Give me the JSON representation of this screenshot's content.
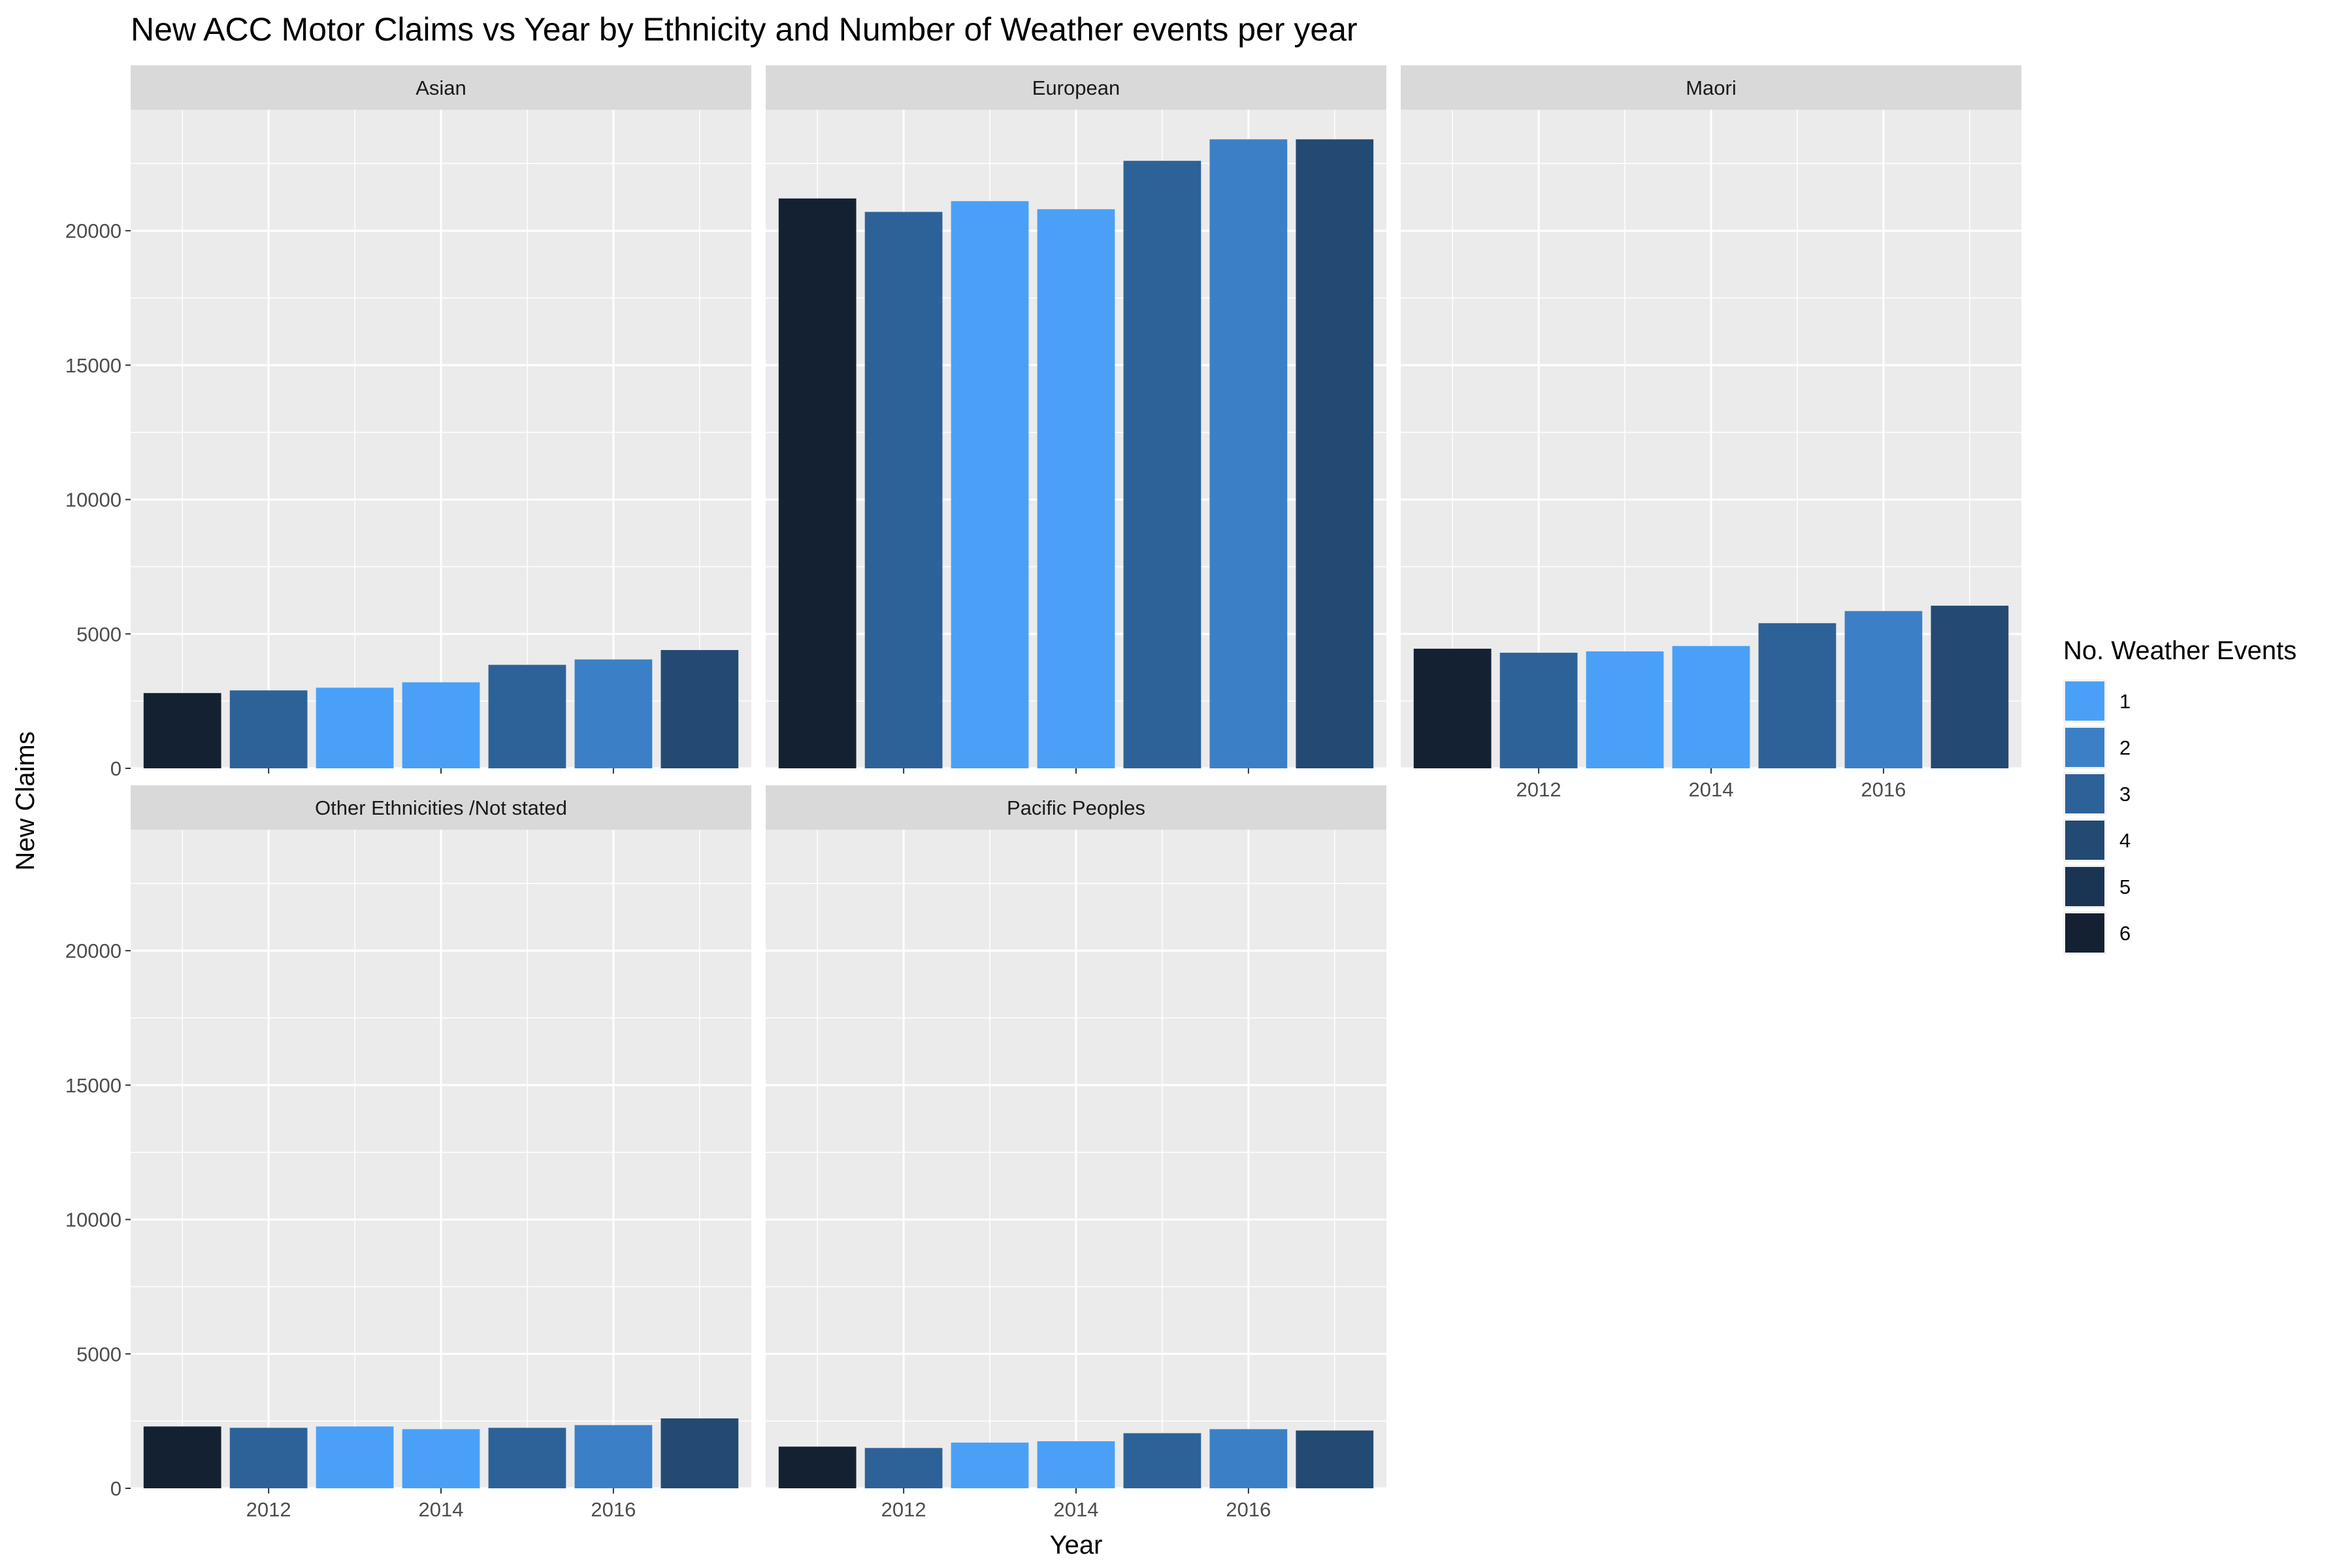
{
  "chart_data": {
    "type": "bar",
    "title": "New ACC Motor Claims vs Year by Ethnicity and Number of Weather events per year",
    "xlabel": "Year",
    "ylabel": "New Claims",
    "x_ticks": [
      "2012",
      "2014",
      "2016"
    ],
    "y_ticks": [
      "0",
      "5000",
      "10000",
      "15000",
      "20000"
    ],
    "ylim": [
      0,
      24500
    ],
    "xlim": [
      2010.4,
      2017.6
    ],
    "grid": true,
    "legend": {
      "title": "No. Weather Events",
      "position": "right",
      "items": [
        {
          "label": "1",
          "color": "#4aa0f7"
        },
        {
          "label": "2",
          "color": "#3b80c6"
        },
        {
          "label": "3",
          "color": "#2d6299"
        },
        {
          "label": "4",
          "color": "#234a72"
        },
        {
          "label": "5",
          "color": "#1a3453"
        },
        {
          "label": "6",
          "color": "#132133"
        }
      ]
    },
    "years": [
      2011,
      2012,
      2013,
      2014,
      2015,
      2016,
      2017
    ],
    "weather_events": [
      6,
      3,
      1,
      1,
      3,
      2,
      4
    ],
    "panels": [
      {
        "name": "Asian",
        "values": [
          2800,
          2900,
          3000,
          3200,
          3850,
          4050,
          4400
        ]
      },
      {
        "name": "European",
        "values": [
          21200,
          20700,
          21100,
          20800,
          22600,
          23400,
          23400
        ]
      },
      {
        "name": "Maori",
        "values": [
          4450,
          4300,
          4350,
          4550,
          5400,
          5850,
          6050
        ]
      },
      {
        "name": "Other Ethnicities /Not stated",
        "values": [
          2300,
          2250,
          2300,
          2200,
          2250,
          2350,
          2600
        ]
      },
      {
        "name": "Pacific Peoples",
        "values": [
          1550,
          1500,
          1700,
          1750,
          2050,
          2200,
          2150
        ]
      }
    ]
  }
}
